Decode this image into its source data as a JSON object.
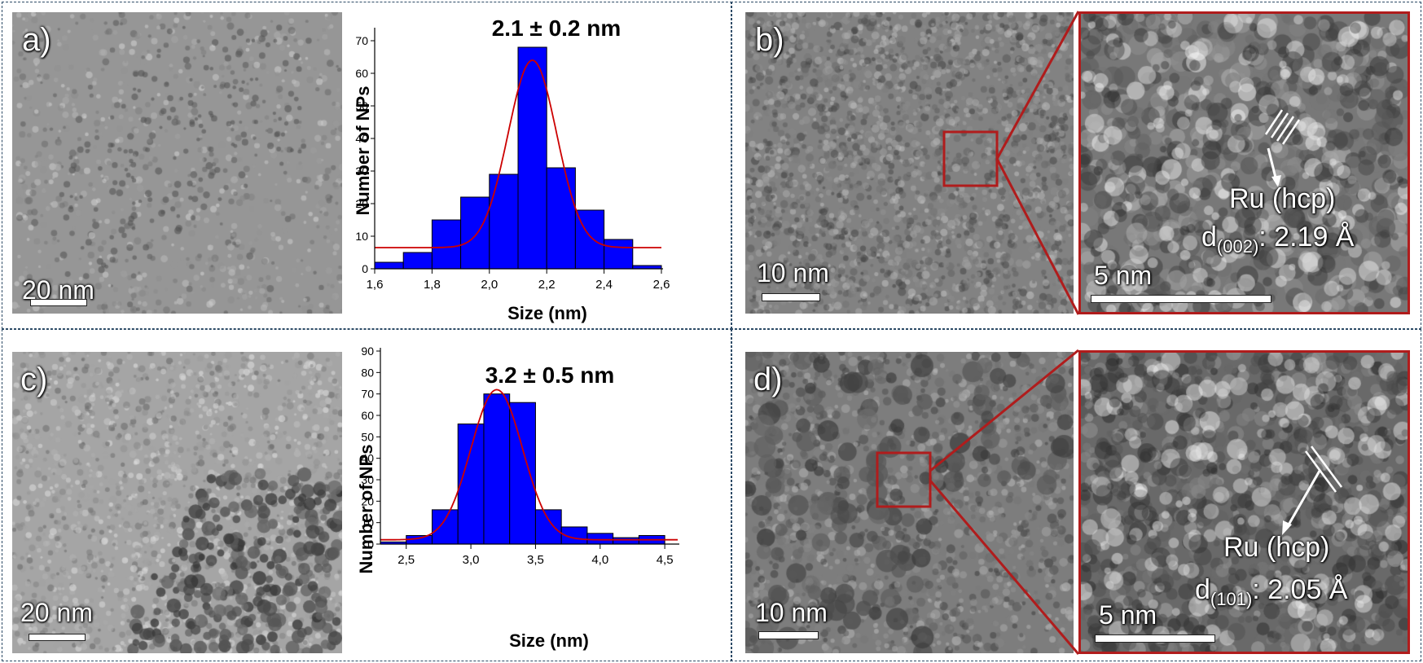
{
  "panels": {
    "a": {
      "label": "a)",
      "scale_bar": "20 nm"
    },
    "b": {
      "label": "b)",
      "scale_bar": "10 nm",
      "zoom_scale_bar": "5 nm",
      "annotation_phase": "Ru (hcp)",
      "annotation_d": "d",
      "annotation_hkl": "(002)",
      "annotation_value": ": 2.19 Å"
    },
    "c": {
      "label": "c)",
      "scale_bar": "20 nm"
    },
    "d": {
      "label": "d)",
      "scale_bar": "10 nm",
      "zoom_scale_bar": "5 nm",
      "annotation_phase": "Ru (hcp)",
      "annotation_d": "d",
      "annotation_hkl": "(101)",
      "annotation_value": ": 2.05 Å"
    }
  },
  "colors": {
    "bar_fill": "#0000ff",
    "fit_line": "#cc0000",
    "zoom_frame": "#b01c1c",
    "divider": "#2c4a66"
  },
  "chart_data": [
    {
      "type": "bar",
      "title": "2.1 ± 0.2 nm",
      "xlabel": "Size (nm)",
      "ylabel": "Number of NPs",
      "x_ticks": [
        1.6,
        1.8,
        2.0,
        2.2,
        2.4,
        2.6
      ],
      "x_tick_labels": [
        "1,6",
        "1,8",
        "2,0",
        "2,2",
        "2,4",
        "2,6"
      ],
      "y_ticks": [
        0,
        10,
        20,
        30,
        40,
        50,
        60,
        70
      ],
      "xlim": [
        1.6,
        2.6
      ],
      "ylim": [
        0,
        73
      ],
      "bin_width": 0.1,
      "bin_centers": [
        1.65,
        1.75,
        1.85,
        1.95,
        2.05,
        2.15,
        2.25,
        2.35,
        2.45,
        2.55
      ],
      "values": [
        2,
        5,
        15,
        22,
        29,
        68,
        31,
        18,
        9,
        1
      ],
      "fit": {
        "kind": "gaussian",
        "center": 2.15,
        "sigma": 0.085,
        "amplitude": 57.5,
        "baseline": 6.5
      }
    },
    {
      "type": "bar",
      "title": "3.2 ± 0.5 nm",
      "xlabel": "Size (nm)",
      "ylabel": "Number of NPs",
      "x_ticks": [
        2.5,
        3.0,
        3.5,
        4.0,
        4.5
      ],
      "x_tick_labels": [
        "2,5",
        "3,0",
        "3,5",
        "4,0",
        "4,5"
      ],
      "y_ticks": [
        0,
        10,
        20,
        30,
        40,
        50,
        60,
        70,
        80,
        90
      ],
      "xlim": [
        2.3,
        4.6
      ],
      "ylim": [
        0,
        90
      ],
      "bin_width": 0.2,
      "bin_centers": [
        2.4,
        2.6,
        2.8,
        3.0,
        3.2,
        3.4,
        3.6,
        3.8,
        4.0,
        4.2,
        4.4
      ],
      "values": [
        1,
        4,
        16,
        56,
        70,
        66,
        16,
        8,
        5,
        3,
        4
      ],
      "fit": {
        "kind": "gaussian",
        "center": 3.2,
        "sigma": 0.2,
        "amplitude": 70,
        "baseline": 2
      }
    }
  ]
}
